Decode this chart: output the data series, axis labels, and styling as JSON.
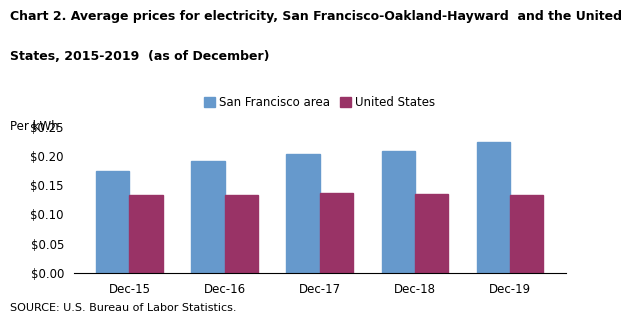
{
  "title_line1": "Chart 2. Average prices for electricity, San Francisco-Oakland-Hayward  and the United",
  "title_line2": "States, 2015-2019  (as of December)",
  "ylabel": "Per kWh",
  "source": "SOURCE: U.S. Bureau of Labor Statistics.",
  "categories": [
    "Dec-15",
    "Dec-16",
    "Dec-17",
    "Dec-18",
    "Dec-19"
  ],
  "sf_values": [
    0.173,
    0.19,
    0.202,
    0.208,
    0.223
  ],
  "us_values": [
    0.132,
    0.132,
    0.136,
    0.135,
    0.132
  ],
  "sf_color": "#6699CC",
  "us_color": "#993366",
  "sf_label": "San Francisco area",
  "us_label": "United States",
  "ylim": [
    0,
    0.25
  ],
  "yticks": [
    0.0,
    0.05,
    0.1,
    0.15,
    0.2,
    0.25
  ],
  "bar_width": 0.35,
  "background_color": "#ffffff",
  "title_fontsize": 9,
  "axis_fontsize": 8.5,
  "tick_fontsize": 8.5,
  "legend_fontsize": 8.5,
  "source_fontsize": 8
}
